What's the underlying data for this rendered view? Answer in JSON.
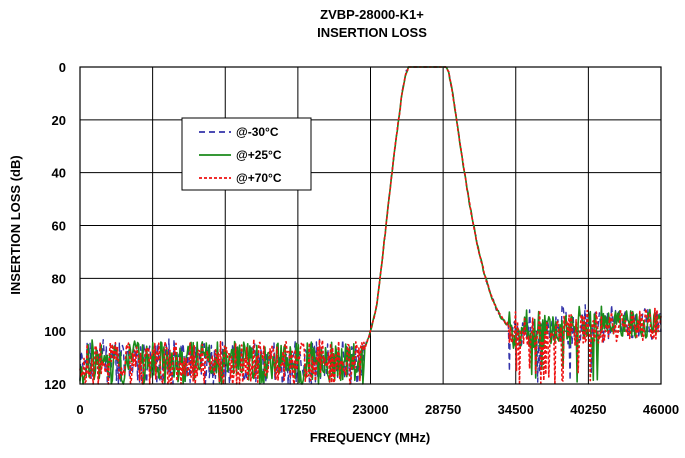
{
  "chart_data": {
    "type": "line",
    "title": "ZVBP-28000-K1+",
    "subtitle": "INSERTION LOSS",
    "xlabel": "FREQUENCY (MHz)",
    "ylabel": "INSERTION LOSS (dB)",
    "xlim": [
      0,
      46000
    ],
    "ylim": [
      120,
      0
    ],
    "y_inverted": true,
    "x_ticks": [
      "0",
      "5750",
      "11500",
      "17250",
      "23000",
      "28750",
      "34500",
      "40250",
      "46000"
    ],
    "y_ticks": [
      "0",
      "20",
      "40",
      "60",
      "80",
      "100",
      "120"
    ],
    "grid": true,
    "legend_position": "upper-left",
    "passband": {
      "edges": [
        [
          22500,
          107
        ],
        [
          23000,
          100
        ],
        [
          23500,
          90
        ],
        [
          24000,
          70
        ],
        [
          24500,
          48
        ],
        [
          25000,
          28
        ],
        [
          25500,
          10
        ],
        [
          25800,
          2
        ],
        [
          26000,
          0
        ],
        [
          29000,
          0
        ],
        [
          29200,
          2
        ],
        [
          29500,
          10
        ],
        [
          30000,
          26
        ],
        [
          30500,
          42
        ],
        [
          31000,
          56
        ],
        [
          31500,
          68
        ],
        [
          32000,
          78
        ],
        [
          32500,
          86
        ],
        [
          33000,
          92
        ],
        [
          33500,
          96
        ],
        [
          34000,
          98
        ]
      ]
    },
    "series": [
      {
        "name": "@-30°C",
        "color": "#3333aa",
        "dash": "6,4",
        "stroke_width": 1.4,
        "noise_seed": 11
      },
      {
        "name": "@+25°C",
        "color": "#1a8a1a",
        "dash": "",
        "stroke_width": 1.6,
        "noise_seed": 23
      },
      {
        "name": "@+70°C",
        "color": "#ee1111",
        "dash": "3,2",
        "stroke_width": 1.6,
        "noise_seed": 37
      }
    ]
  }
}
